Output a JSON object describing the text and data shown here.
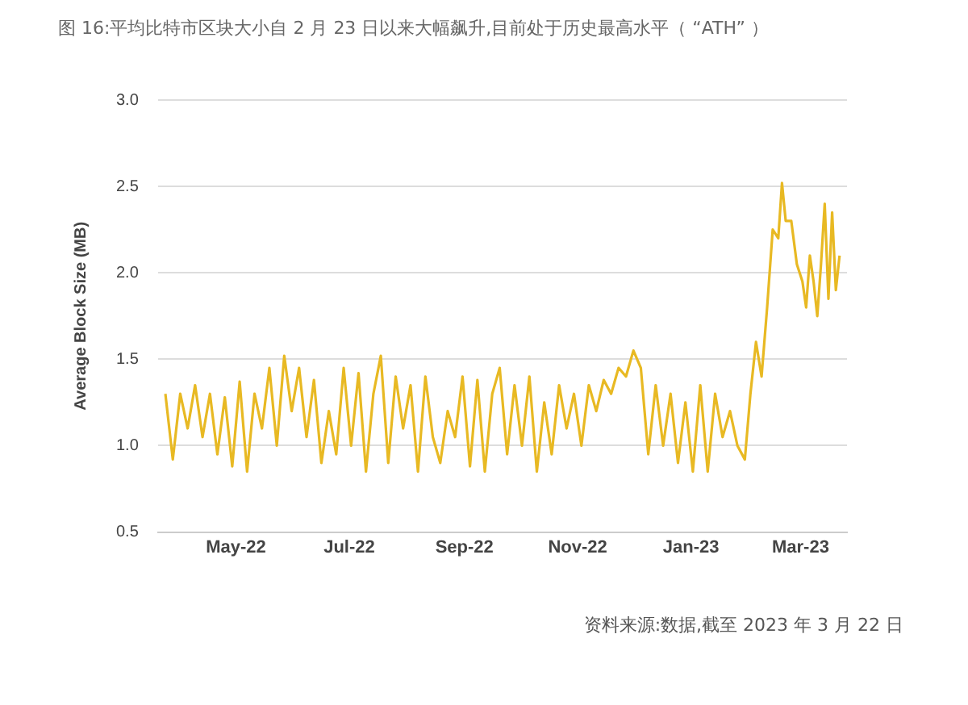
{
  "chart_data": {
    "type": "line",
    "title": "图 16:平均比特市区块大小自 2 月 23 日以来大幅飙升,目前处于历史最高水平（ “ATH” ）",
    "ylabel": "Average Block Size (MB)",
    "x": [
      "2022-03-24",
      "2022-03-28",
      "2022-04-01",
      "2022-04-05",
      "2022-04-09",
      "2022-04-13",
      "2022-04-17",
      "2022-04-21",
      "2022-04-25",
      "2022-04-29",
      "2022-05-03",
      "2022-05-07",
      "2022-05-11",
      "2022-05-15",
      "2022-05-19",
      "2022-05-23",
      "2022-05-27",
      "2022-05-31",
      "2022-06-04",
      "2022-06-08",
      "2022-06-12",
      "2022-06-16",
      "2022-06-20",
      "2022-06-24",
      "2022-06-28",
      "2022-07-02",
      "2022-07-06",
      "2022-07-10",
      "2022-07-14",
      "2022-07-18",
      "2022-07-22",
      "2022-07-26",
      "2022-07-30",
      "2022-08-03",
      "2022-08-07",
      "2022-08-11",
      "2022-08-15",
      "2022-08-19",
      "2022-08-23",
      "2022-08-27",
      "2022-08-31",
      "2022-09-04",
      "2022-09-08",
      "2022-09-12",
      "2022-09-16",
      "2022-09-20",
      "2022-09-24",
      "2022-09-28",
      "2022-10-02",
      "2022-10-06",
      "2022-10-10",
      "2022-10-14",
      "2022-10-18",
      "2022-10-22",
      "2022-10-26",
      "2022-10-30",
      "2022-11-03",
      "2022-11-07",
      "2022-11-11",
      "2022-11-15",
      "2022-11-19",
      "2022-11-23",
      "2022-11-27",
      "2022-12-01",
      "2022-12-05",
      "2022-12-09",
      "2022-12-13",
      "2022-12-17",
      "2022-12-21",
      "2022-12-25",
      "2022-12-29",
      "2023-01-02",
      "2023-01-06",
      "2023-01-10",
      "2023-01-14",
      "2023-01-18",
      "2023-01-22",
      "2023-01-26",
      "2023-01-30",
      "2023-02-02",
      "2023-02-05",
      "2023-02-08",
      "2023-02-11",
      "2023-02-14",
      "2023-02-17",
      "2023-02-19",
      "2023-02-21",
      "2023-02-24",
      "2023-02-27",
      "2023-03-02",
      "2023-03-04",
      "2023-03-06",
      "2023-03-08",
      "2023-03-10",
      "2023-03-12",
      "2023-03-14",
      "2023-03-16",
      "2023-03-18",
      "2023-03-20",
      "2023-03-22"
    ],
    "series": [
      {
        "color": "#e8b923",
        "values": [
          1.3,
          0.92,
          1.3,
          1.1,
          1.35,
          1.05,
          1.3,
          0.95,
          1.28,
          0.88,
          1.37,
          0.85,
          1.3,
          1.1,
          1.45,
          1.0,
          1.52,
          1.2,
          1.45,
          1.05,
          1.38,
          0.9,
          1.2,
          0.95,
          1.45,
          1.0,
          1.42,
          0.85,
          1.3,
          1.52,
          0.9,
          1.4,
          1.1,
          1.35,
          0.85,
          1.4,
          1.05,
          0.9,
          1.2,
          1.05,
          1.4,
          0.88,
          1.38,
          0.85,
          1.3,
          1.45,
          0.95,
          1.35,
          1.0,
          1.4,
          0.85,
          1.25,
          0.95,
          1.35,
          1.1,
          1.3,
          1.0,
          1.35,
          1.2,
          1.38,
          1.3,
          1.45,
          1.4,
          1.55,
          1.45,
          0.95,
          1.35,
          1.0,
          1.3,
          0.9,
          1.25,
          0.85,
          1.35,
          0.85,
          1.3,
          1.05,
          1.2,
          1.0,
          0.92,
          1.3,
          1.6,
          1.4,
          1.8,
          2.25,
          2.2,
          2.52,
          2.3,
          2.3,
          2.05,
          1.95,
          1.8,
          2.1,
          1.95,
          1.75,
          2.05,
          2.4,
          1.85,
          2.35,
          1.9,
          2.1
        ]
      }
    ],
    "xlim": [
      "2022-03-20",
      "2023-03-26"
    ],
    "xticks": [
      {
        "value": "2022-05-01",
        "label": "May-22"
      },
      {
        "value": "2022-07-01",
        "label": "Jul-22"
      },
      {
        "value": "2022-09-01",
        "label": "Sep-22"
      },
      {
        "value": "2022-11-01",
        "label": "Nov-22"
      },
      {
        "value": "2023-01-01",
        "label": "Jan-23"
      },
      {
        "value": "2023-03-01",
        "label": "Mar-23"
      }
    ],
    "ylim": [
      0.5,
      3.0
    ],
    "yticks": [
      0.5,
      {
        "value": 1.0,
        "label": "1.0"
      },
      1.5,
      {
        "value": 2.0,
        "label": "2.0"
      },
      2.5,
      {
        "value": 3.0,
        "label": "3.0"
      }
    ],
    "grid": "y",
    "marker": "none",
    "line_style": "solid",
    "annotations": [
      "资料来源:数据,截至 2023 年 3 月 22 日"
    ]
  }
}
